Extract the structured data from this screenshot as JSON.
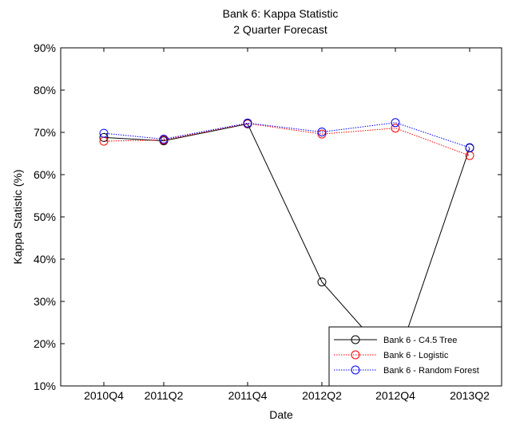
{
  "chart_data": {
    "type": "line",
    "title": "Bank 6: Kappa Statistic",
    "subtitle": "2 Quarter Forecast",
    "xlabel": "Date",
    "ylabel": "Kappa Statistic (%)",
    "categories": [
      "2010Q4",
      "2011Q2",
      "2011Q4",
      "2012Q2",
      "2012Q4",
      "2013Q2"
    ],
    "ylim": [
      10,
      90
    ],
    "yticks": [
      10,
      20,
      30,
      40,
      50,
      60,
      70,
      80,
      90
    ],
    "ytick_labels": [
      "10%",
      "20%",
      "30%",
      "40%",
      "50%",
      "60%",
      "70%",
      "80%",
      "90%"
    ],
    "grid": false,
    "legend_position": "bottom-right",
    "series": [
      {
        "name": "Bank 6 - C4.5 Tree",
        "color": "#000000",
        "dash": "solid",
        "values": [
          68.8,
          68.0,
          72.0,
          34.6,
          15.0,
          66.3
        ]
      },
      {
        "name": "Bank 6 - Logistic",
        "color": "#ff0000",
        "dash": "dotted",
        "values": [
          67.9,
          68.2,
          72.1,
          69.6,
          71.0,
          64.5
        ]
      },
      {
        "name": "Bank 6 - Random Forest",
        "color": "#0000ff",
        "dash": "dotted",
        "values": [
          69.8,
          68.4,
          72.2,
          70.1,
          72.3,
          66.4
        ]
      }
    ]
  }
}
